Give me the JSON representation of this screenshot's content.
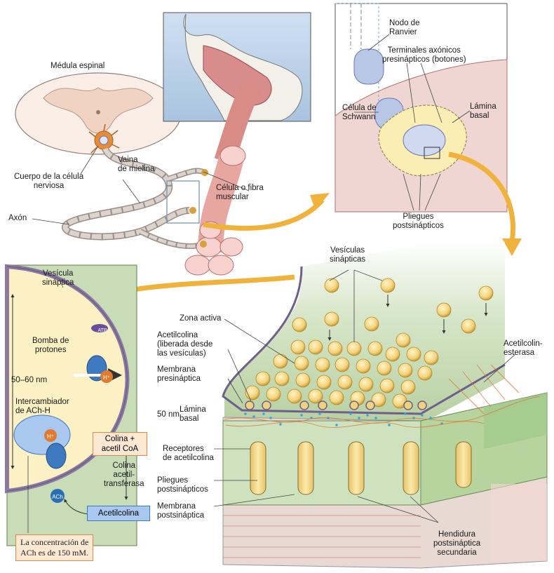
{
  "labels": {
    "medula": "Médula espinal",
    "cuerpo": "Cuerpo de la célula\nnerviosa",
    "vaina": "Vaina\nde mielina",
    "axon": "Axón",
    "celula_muscular": "Célula o fibra\nmuscular",
    "nodo": "Nodo de\nRanvier",
    "terminales": "Terminales axónicos\npresinápticos (botones)",
    "schwann": "Célula de\nSchwann",
    "lamina_top": "Lámina\nbasal",
    "pliegues_top": "Pliegues\npostsinápticos",
    "vesiculas": "Vesículas\nsinápticas",
    "zona": "Zona activa",
    "acetilcolina_lib": "Acetilcolina\n(liberada desde\nlas vesículas)",
    "membrana_pre": "Membrana\npresináptica",
    "nm50": "50 nm",
    "lamina_basal": "Lámina\nbasal",
    "receptores": "Receptores\nde acetilcolina",
    "pliegues_bottom": "Pliegues\npostsinápticos",
    "membrana_post": "Membrana\npostsináptica",
    "hendidura": "Hendidura\npostsináptica\nsecundaria",
    "esterasa": "Acetilcolin-\nesterasa",
    "vesicula_sin": "Vesícula\nsináptica",
    "bomba": "Bomba de\nprotones",
    "nm5060": "50–60 nm",
    "intercambiador": "Intercambiador\nde ACh-H",
    "colina_acetil": "Colina +\nacetil CoA",
    "transferasa": "Colina\nacetil-\ntransferasa",
    "acetilcolina": "Acetilcolina",
    "concentracion": "La concentración de\nACh es de 150 mM.",
    "atp": "ATP",
    "hplus": "H⁺",
    "hplus2": "H⁺",
    "ach": "ACh"
  },
  "colors": {
    "panel_green": "#c9dcb8",
    "vesicle_yellow": "#f2d27a",
    "arrow_orange": "#f0b23a",
    "muscle_pink": "#e8a6a0",
    "schwann_blue": "#b9c7e6",
    "ach_blue": "#2a6fb5"
  }
}
